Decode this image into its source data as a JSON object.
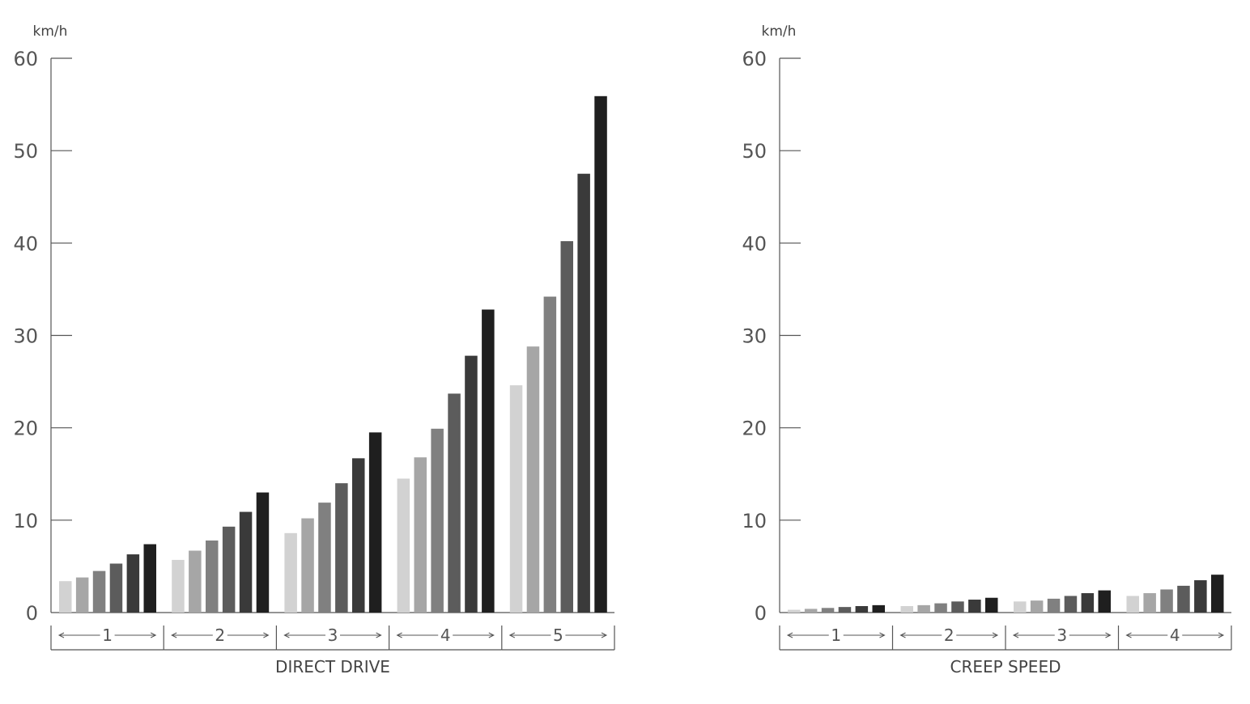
{
  "chart_data": [
    {
      "type": "bar",
      "unit": "km/h",
      "xlabel": "DIRECT DRIVE",
      "ylim": [
        0,
        60
      ],
      "yticks": [
        0,
        10,
        20,
        30,
        40,
        50,
        60
      ],
      "groups": [
        "1",
        "2",
        "3",
        "4",
        "5"
      ],
      "series_colors": [
        "#d2d2d2",
        "#a6a6a6",
        "#808080",
        "#5c5c5c",
        "#3a3a3a",
        "#1f1f1f"
      ],
      "values": [
        [
          3.4,
          3.8,
          4.5,
          5.3,
          6.3,
          7.4
        ],
        [
          5.7,
          6.7,
          7.8,
          9.3,
          10.9,
          13.0
        ],
        [
          8.6,
          10.2,
          11.9,
          14.0,
          16.7,
          19.5
        ],
        [
          14.5,
          16.8,
          19.9,
          23.7,
          27.8,
          32.8
        ],
        [
          24.6,
          28.8,
          34.2,
          40.2,
          47.5,
          55.9
        ]
      ]
    },
    {
      "type": "bar",
      "unit": "km/h",
      "xlabel": "CREEP SPEED",
      "ylim": [
        0,
        60
      ],
      "yticks": [
        0,
        10,
        20,
        30,
        40,
        50,
        60
      ],
      "groups": [
        "1",
        "2",
        "3",
        "4"
      ],
      "series_colors": [
        "#d2d2d2",
        "#a6a6a6",
        "#808080",
        "#5c5c5c",
        "#3a3a3a",
        "#1f1f1f"
      ],
      "values": [
        [
          0.3,
          0.4,
          0.5,
          0.6,
          0.7,
          0.8
        ],
        [
          0.7,
          0.8,
          1.0,
          1.2,
          1.4,
          1.6
        ],
        [
          1.2,
          1.3,
          1.5,
          1.8,
          2.1,
          2.4
        ],
        [
          1.8,
          2.1,
          2.5,
          2.9,
          3.5,
          4.1
        ]
      ]
    }
  ]
}
